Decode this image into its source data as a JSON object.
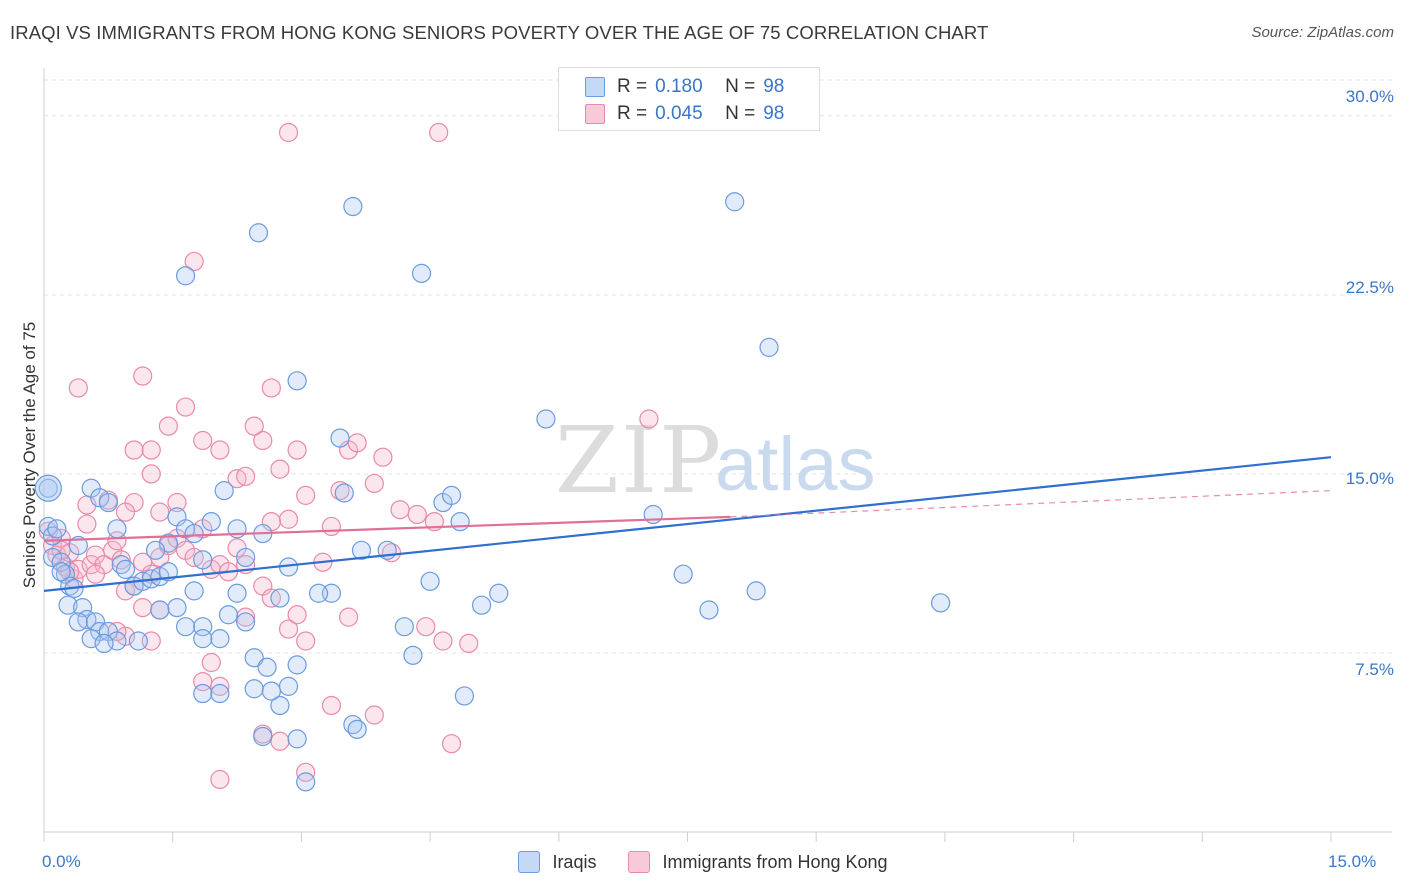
{
  "title": "IRAQI VS IMMIGRANTS FROM HONG KONG SENIORS POVERTY OVER THE AGE OF 75 CORRELATION CHART",
  "source": "Source: ZipAtlas.com",
  "watermark": {
    "zip": "ZIP",
    "atlas": "atlas"
  },
  "legend_top": {
    "r_label": "R =",
    "n_label": "N =",
    "rows": [
      {
        "r": "0.180",
        "n": "98"
      },
      {
        "r": "0.045",
        "n": "98"
      }
    ]
  },
  "chart_data": {
    "type": "scatter",
    "title": "IRAQI VS IMMIGRANTS FROM HONG KONG SENIORS POVERTY OVER THE AGE OF 75 CORRELATION CHART",
    "xlabel": "",
    "ylabel": "Seniors Poverty Over the Age of 75",
    "xlim": [
      0,
      15
    ],
    "ylim": [
      0,
      31.5
    ],
    "x_tick_labels": [
      "0.0%",
      "15.0%"
    ],
    "y_ticks": [
      7.5,
      15.0,
      22.5,
      30.0
    ],
    "y_tick_labels": [
      "7.5%",
      "15.0%",
      "22.5%",
      "30.0%"
    ],
    "grid": true,
    "legend_position": "top-center",
    "colors": {
      "iraqis": "#6b9be0",
      "hongkong": "#e98aa8",
      "iraqis_line": "#2f6fcf",
      "hongkong_line": "#e07096"
    },
    "series": [
      {
        "name": "Iraqis",
        "r": 0.18,
        "n": 98,
        "trend": {
          "x": [
            0,
            15
          ],
          "y": [
            10.1,
            15.7
          ],
          "style": "solid"
        },
        "points": [
          [
            0.05,
            14.4
          ],
          [
            0.05,
            12.8
          ],
          [
            0.1,
            12.4
          ],
          [
            0.15,
            12.7
          ],
          [
            0.1,
            11.5
          ],
          [
            0.2,
            11.3
          ],
          [
            0.25,
            10.8
          ],
          [
            0.3,
            10.3
          ],
          [
            0.35,
            10.2
          ],
          [
            0.28,
            9.5
          ],
          [
            0.45,
            9.4
          ],
          [
            0.5,
            8.9
          ],
          [
            0.4,
            8.8
          ],
          [
            0.6,
            8.8
          ],
          [
            0.65,
            8.4
          ],
          [
            0.55,
            8.1
          ],
          [
            0.75,
            8.4
          ],
          [
            0.85,
            8.0
          ],
          [
            0.7,
            7.9
          ],
          [
            0.55,
            14.4
          ],
          [
            0.65,
            14.0
          ],
          [
            0.75,
            13.8
          ],
          [
            0.85,
            12.7
          ],
          [
            0.9,
            11.2
          ],
          [
            0.95,
            11.0
          ],
          [
            1.05,
            10.3
          ],
          [
            1.15,
            10.5
          ],
          [
            1.25,
            10.6
          ],
          [
            1.35,
            10.7
          ],
          [
            1.45,
            10.9
          ],
          [
            1.55,
            9.4
          ],
          [
            1.35,
            9.3
          ],
          [
            1.65,
            8.6
          ],
          [
            1.85,
            8.6
          ],
          [
            2.05,
            8.1
          ],
          [
            1.85,
            8.1
          ],
          [
            2.15,
            9.1
          ],
          [
            2.25,
            10.0
          ],
          [
            1.75,
            10.1
          ],
          [
            1.45,
            12.1
          ],
          [
            1.55,
            13.2
          ],
          [
            1.65,
            12.7
          ],
          [
            1.75,
            12.5
          ],
          [
            1.85,
            11.4
          ],
          [
            1.95,
            13.0
          ],
          [
            2.1,
            14.3
          ],
          [
            2.25,
            12.7
          ],
          [
            2.35,
            11.5
          ],
          [
            2.55,
            12.5
          ],
          [
            2.45,
            7.3
          ],
          [
            2.45,
            6.0
          ],
          [
            2.6,
            6.9
          ],
          [
            2.75,
            5.3
          ],
          [
            2.85,
            6.1
          ],
          [
            2.95,
            7.0
          ],
          [
            2.65,
            5.9
          ],
          [
            2.75,
            9.8
          ],
          [
            2.85,
            11.1
          ],
          [
            2.55,
            4.0
          ],
          [
            2.95,
            3.9
          ],
          [
            1.85,
            5.8
          ],
          [
            2.35,
            8.8
          ],
          [
            2.95,
            18.9
          ],
          [
            2.5,
            25.1
          ],
          [
            1.65,
            23.3
          ],
          [
            3.6,
            26.2
          ],
          [
            4.4,
            23.4
          ],
          [
            3.45,
            16.5
          ],
          [
            3.5,
            14.2
          ],
          [
            3.7,
            11.8
          ],
          [
            4.0,
            11.8
          ],
          [
            4.2,
            8.6
          ],
          [
            4.3,
            7.4
          ],
          [
            4.5,
            10.5
          ],
          [
            4.65,
            13.8
          ],
          [
            4.75,
            14.1
          ],
          [
            4.85,
            13.0
          ],
          [
            4.9,
            5.7
          ],
          [
            5.1,
            9.5
          ],
          [
            5.3,
            10.0
          ],
          [
            3.6,
            4.5
          ],
          [
            3.65,
            4.3
          ],
          [
            3.35,
            10.0
          ],
          [
            3.2,
            10.0
          ],
          [
            3.05,
            2.1
          ],
          [
            5.85,
            17.3
          ],
          [
            7.1,
            13.3
          ],
          [
            7.45,
            10.8
          ],
          [
            7.75,
            9.3
          ],
          [
            8.05,
            26.4
          ],
          [
            8.3,
            10.1
          ],
          [
            8.45,
            20.3
          ],
          [
            10.45,
            9.6
          ],
          [
            0.4,
            12.0
          ],
          [
            0.2,
            10.9
          ],
          [
            1.1,
            8.0
          ],
          [
            1.3,
            11.8
          ],
          [
            2.05,
            5.8
          ]
        ]
      },
      {
        "name": "Immigrants from Hong Kong",
        "r": 0.045,
        "n": 98,
        "trend": {
          "x": [
            0,
            8.0
          ],
          "y": [
            12.2,
            13.2
          ],
          "style": "solid",
          "dashed_extension": {
            "x": [
              8.0,
              15
            ],
            "y": [
              13.2,
              14.3
            ]
          }
        },
        "points": [
          [
            0.05,
            12.6
          ],
          [
            0.1,
            12.0
          ],
          [
            0.15,
            11.6
          ],
          [
            0.2,
            12.3
          ],
          [
            0.25,
            11.1
          ],
          [
            0.3,
            11.7
          ],
          [
            0.35,
            10.6
          ],
          [
            0.4,
            11.0
          ],
          [
            0.5,
            12.9
          ],
          [
            0.55,
            11.2
          ],
          [
            0.6,
            11.6
          ],
          [
            0.7,
            11.2
          ],
          [
            0.8,
            11.8
          ],
          [
            0.85,
            12.2
          ],
          [
            0.9,
            11.4
          ],
          [
            0.95,
            10.1
          ],
          [
            1.05,
            10.3
          ],
          [
            1.15,
            11.3
          ],
          [
            1.25,
            10.8
          ],
          [
            1.35,
            11.5
          ],
          [
            1.45,
            12.0
          ],
          [
            1.55,
            12.3
          ],
          [
            1.65,
            11.8
          ],
          [
            1.75,
            11.5
          ],
          [
            1.85,
            12.7
          ],
          [
            1.95,
            11.0
          ],
          [
            2.05,
            11.2
          ],
          [
            2.15,
            10.9
          ],
          [
            2.25,
            11.9
          ],
          [
            2.35,
            11.2
          ],
          [
            0.4,
            18.6
          ],
          [
            1.15,
            19.1
          ],
          [
            1.45,
            17.0
          ],
          [
            1.65,
            17.8
          ],
          [
            1.55,
            13.8
          ],
          [
            1.35,
            13.4
          ],
          [
            1.05,
            13.8
          ],
          [
            0.95,
            13.4
          ],
          [
            0.75,
            13.9
          ],
          [
            0.5,
            13.7
          ],
          [
            1.05,
            16.0
          ],
          [
            1.25,
            16.0
          ],
          [
            1.25,
            15.0
          ],
          [
            1.75,
            23.9
          ],
          [
            1.85,
            16.4
          ],
          [
            2.05,
            16.0
          ],
          [
            2.25,
            14.8
          ],
          [
            2.35,
            14.9
          ],
          [
            2.55,
            16.4
          ],
          [
            2.45,
            17.0
          ],
          [
            2.65,
            18.6
          ],
          [
            2.75,
            15.2
          ],
          [
            2.95,
            16.0
          ],
          [
            3.05,
            14.1
          ],
          [
            2.85,
            13.1
          ],
          [
            2.65,
            13.0
          ],
          [
            3.25,
            11.3
          ],
          [
            3.35,
            12.8
          ],
          [
            3.45,
            14.3
          ],
          [
            3.55,
            16.0
          ],
          [
            3.65,
            16.3
          ],
          [
            3.85,
            14.6
          ],
          [
            3.95,
            15.7
          ],
          [
            4.15,
            13.5
          ],
          [
            4.35,
            13.3
          ],
          [
            4.55,
            13.0
          ],
          [
            2.85,
            29.3
          ],
          [
            4.6,
            29.3
          ],
          [
            7.05,
            17.3
          ],
          [
            4.05,
            11.7
          ],
          [
            2.35,
            9.0
          ],
          [
            2.55,
            10.3
          ],
          [
            2.65,
            9.8
          ],
          [
            2.85,
            8.5
          ],
          [
            2.95,
            9.1
          ],
          [
            3.05,
            8.0
          ],
          [
            3.55,
            9.0
          ],
          [
            4.45,
            8.6
          ],
          [
            4.65,
            8.0
          ],
          [
            4.95,
            7.9
          ],
          [
            1.95,
            7.1
          ],
          [
            1.85,
            6.3
          ],
          [
            2.05,
            6.1
          ],
          [
            2.55,
            4.1
          ],
          [
            2.75,
            3.8
          ],
          [
            3.35,
            5.3
          ],
          [
            3.85,
            4.9
          ],
          [
            3.05,
            2.5
          ],
          [
            2.05,
            2.2
          ],
          [
            4.75,
            3.7
          ],
          [
            1.35,
            9.3
          ],
          [
            1.15,
            9.4
          ],
          [
            0.95,
            8.2
          ],
          [
            0.85,
            8.4
          ],
          [
            1.25,
            8.0
          ],
          [
            0.2,
            11.8
          ],
          [
            0.3,
            10.9
          ],
          [
            0.6,
            10.8
          ]
        ]
      }
    ]
  },
  "legend_bottom": [
    {
      "label": "Iraqis"
    },
    {
      "label": "Immigrants from Hong Kong"
    }
  ]
}
